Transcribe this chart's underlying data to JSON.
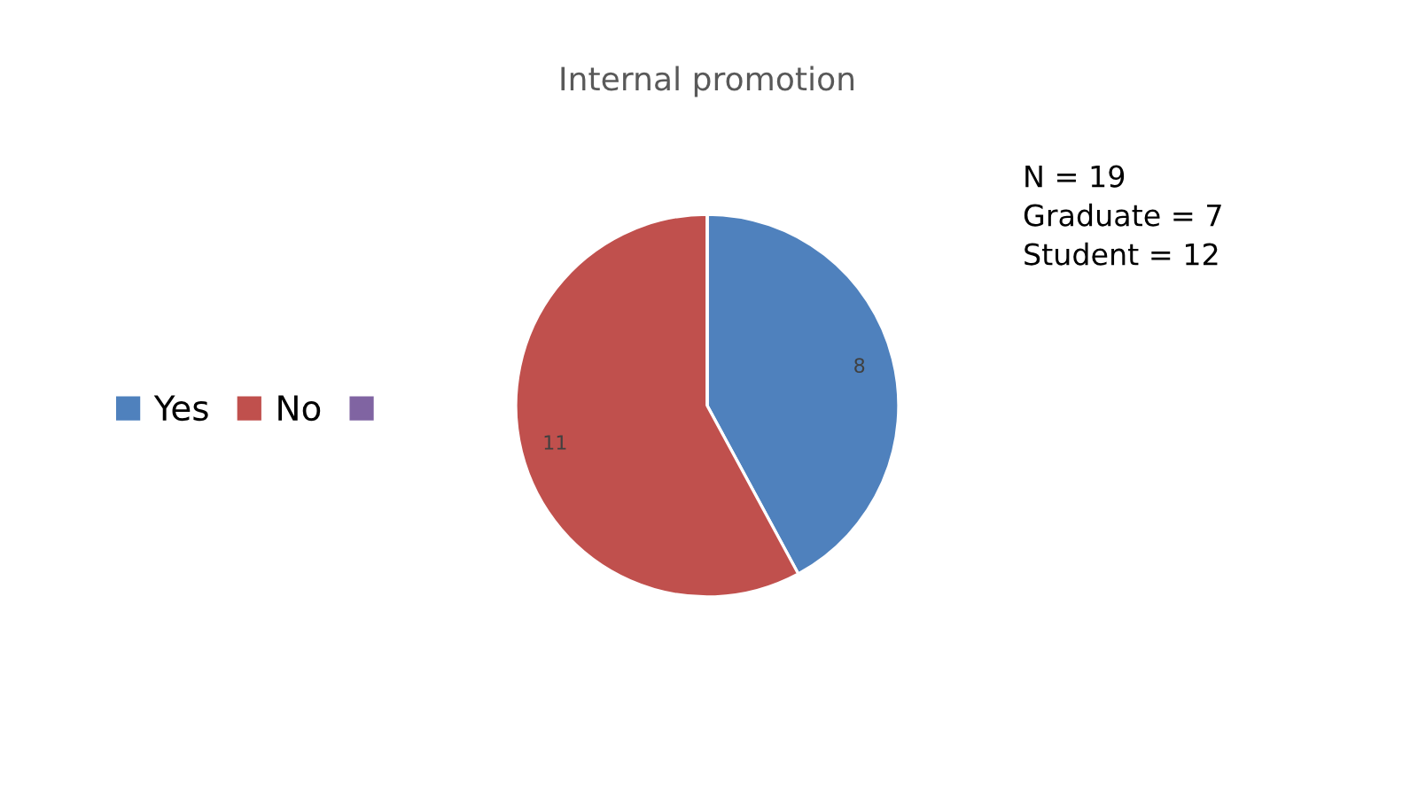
{
  "chart_data": {
    "type": "pie",
    "title": "Internal promotion",
    "categories": [
      "Yes",
      "No",
      null
    ],
    "values": [
      8,
      11,
      0
    ],
    "colors": [
      "#4f81bd",
      "#c0504d",
      "#8064a2"
    ],
    "value_labels": [
      "8",
      "11",
      null
    ],
    "legend": "left",
    "annotations": [
      "N = 19",
      "Graduate = 7",
      "Student = 12"
    ]
  }
}
